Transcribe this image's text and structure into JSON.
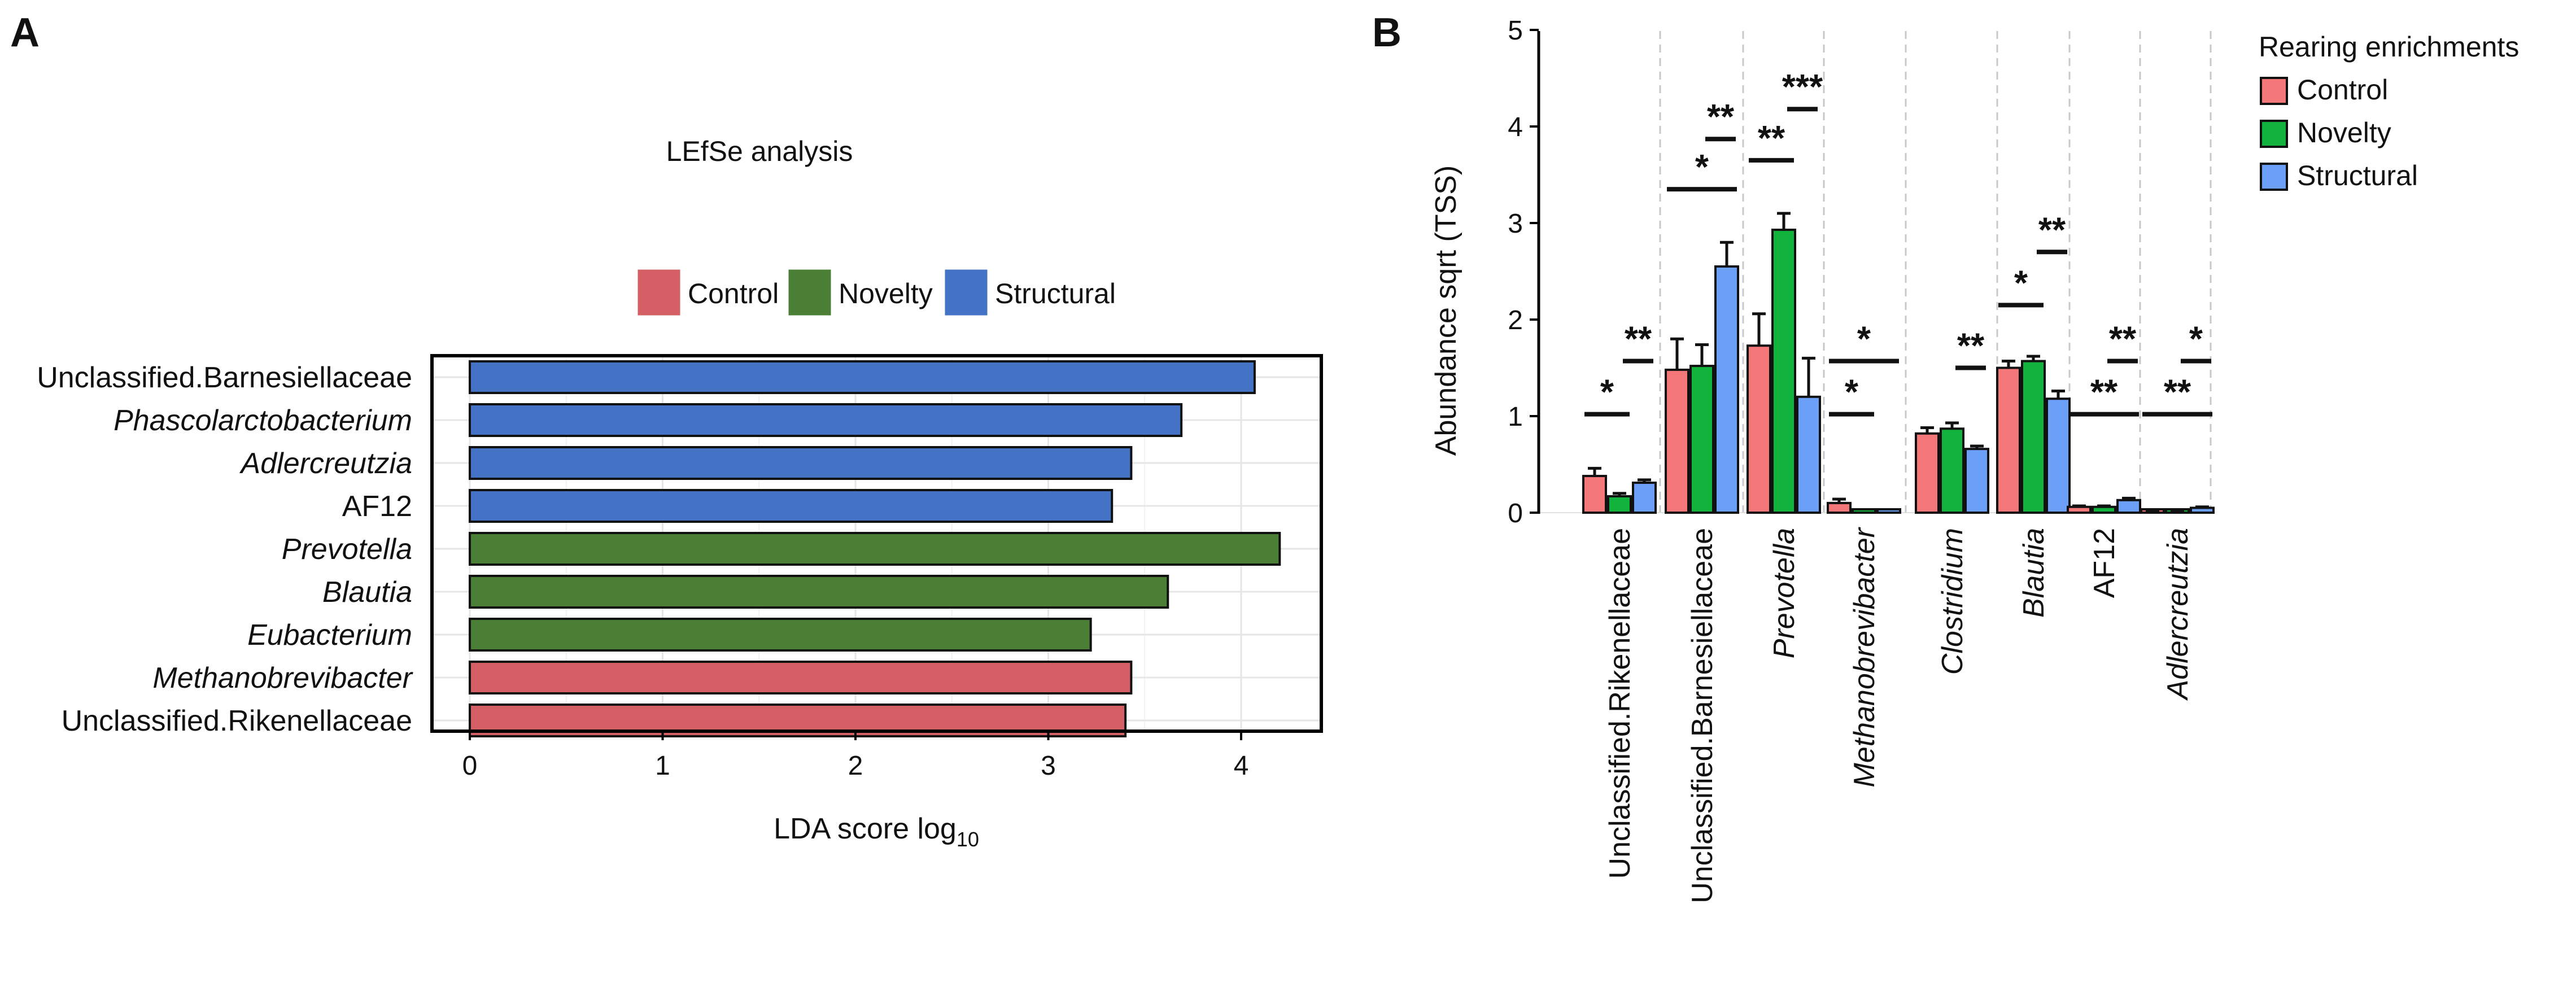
{
  "panels": {
    "a": "A",
    "b": "B"
  },
  "chart_data": [
    {
      "type": "bar",
      "orientation": "horizontal",
      "title": "LEfSe analysis",
      "xlabel": "LDA score log",
      "xlabel_sub": "10",
      "xlim": [
        -0.1,
        4.35
      ],
      "xticks": [
        0,
        1,
        2,
        3,
        4
      ],
      "legend": [
        {
          "label": "Control",
          "color": "#d45f64"
        },
        {
          "label": "Novelty",
          "color": "#4a7f35"
        },
        {
          "label": "Structural",
          "color": "#4472c4"
        }
      ],
      "categories": [
        {
          "label": "Unclassified.Barnesiellaceae",
          "italic": false,
          "group": "Structural",
          "value": 4.07
        },
        {
          "label": "Phascolarctobacterium",
          "italic": true,
          "group": "Structural",
          "value": 3.69
        },
        {
          "label": "Adlercreutzia",
          "italic": true,
          "group": "Structural",
          "value": 3.43
        },
        {
          "label": "AF12",
          "italic": false,
          "group": "Structural",
          "value": 3.33
        },
        {
          "label": "Prevotella",
          "italic": true,
          "group": "Novelty",
          "value": 4.2
        },
        {
          "label": "Blautia",
          "italic": true,
          "group": "Novelty",
          "value": 3.62
        },
        {
          "label": "Eubacterium",
          "italic": true,
          "group": "Novelty",
          "value": 3.22
        },
        {
          "label": "Methanobrevibacter",
          "italic": true,
          "group": "Control",
          "value": 3.43
        },
        {
          "label": "Unclassified.Rikenellaceae",
          "italic": false,
          "group": "Control",
          "value": 3.4
        }
      ]
    },
    {
      "type": "bar",
      "orientation": "vertical",
      "ylabel": "Abundance sqrt (TSS)",
      "ylim": [
        0,
        5
      ],
      "yticks": [
        0,
        1,
        2,
        3,
        4,
        5
      ],
      "legend_title": "Rearing enrichments",
      "series": [
        {
          "name": "Control",
          "color": "#f4777a",
          "values": [
            0.38,
            1.48,
            1.73,
            0.1,
            0.82,
            1.5,
            0.06,
            0.01
          ],
          "errors": [
            0.08,
            0.32,
            0.33,
            0.04,
            0.06,
            0.07,
            0.01,
            0.005
          ]
        },
        {
          "name": "Novelty",
          "color": "#12b33c",
          "values": [
            0.17,
            1.52,
            2.93,
            0.0,
            0.87,
            1.57,
            0.06,
            0.01
          ],
          "errors": [
            0.03,
            0.22,
            0.17,
            0.0,
            0.06,
            0.05,
            0.01,
            0.005
          ]
        },
        {
          "name": "Structural",
          "color": "#6b9ff8",
          "values": [
            0.31,
            2.55,
            1.2,
            0.0,
            0.66,
            1.18,
            0.13,
            0.05
          ],
          "errors": [
            0.03,
            0.25,
            0.4,
            0.0,
            0.03,
            0.08,
            0.02,
            0.01
          ]
        }
      ],
      "categories": [
        {
          "label": "Unclassified.Rikenellaceae",
          "italic": false,
          "significance": [
            {
              "pair": "Control-Novelty",
              "stars": "*",
              "y": 1.02
            },
            {
              "pair": "Novelty-Structural",
              "stars": "**",
              "y": 1.57
            }
          ]
        },
        {
          "label": "Unclassified.Barnesiellaceae",
          "italic": false,
          "significance": [
            {
              "pair": "Control-Structural",
              "stars": "*",
              "y": 3.35
            },
            {
              "pair": "Novelty-Structural",
              "stars": "**",
              "y": 3.87
            }
          ]
        },
        {
          "label": "Prevotella",
          "italic": true,
          "significance": [
            {
              "pair": "Control-Novelty",
              "stars": "**",
              "y": 3.65
            },
            {
              "pair": "Novelty-Structural",
              "stars": "***",
              "y": 4.18
            }
          ]
        },
        {
          "label": "Methanobrevibacter",
          "italic": true,
          "significance": [
            {
              "pair": "Control-Novelty",
              "stars": "*",
              "y": 1.02
            },
            {
              "pair": "Control-Structural",
              "stars": "*",
              "y": 1.57
            }
          ]
        },
        {
          "label": "Clostridium",
          "italic": true,
          "significance": [
            {
              "pair": "Novelty-Structural",
              "stars": "**",
              "y": 1.5
            }
          ]
        },
        {
          "label": "Blautia",
          "italic": true,
          "significance": [
            {
              "pair": "Control-Novelty",
              "stars": "*",
              "y": 2.15
            },
            {
              "pair": "Novelty-Structural",
              "stars": "**",
              "y": 2.7
            }
          ]
        },
        {
          "label": "AF12",
          "italic": false,
          "significance": [
            {
              "pair": "Control-Structural",
              "stars": "**",
              "y": 1.02
            },
            {
              "pair": "Novelty-Structural",
              "stars": "**",
              "y": 1.57
            }
          ]
        },
        {
          "label": "Adlercreutzia",
          "italic": true,
          "significance": [
            {
              "pair": "Control-Structural",
              "stars": "**",
              "y": 1.02
            },
            {
              "pair": "Novelty-Structural",
              "stars": "*",
              "y": 1.57
            }
          ]
        }
      ]
    }
  ]
}
